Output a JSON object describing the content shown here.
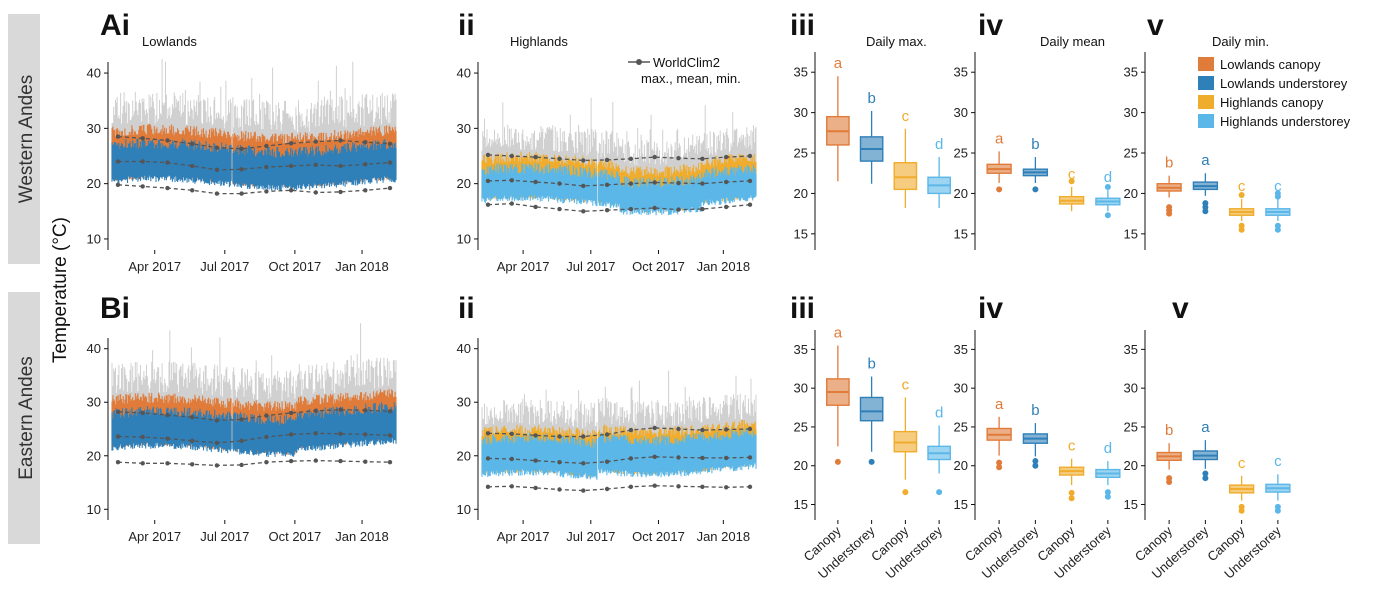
{
  "figure": {
    "y_axis_label": "Temperature (°C)",
    "rows": [
      {
        "label": "Western Andes",
        "panel_letters": [
          "Ai",
          "ii",
          "iii",
          "iv",
          "v"
        ]
      },
      {
        "label": "Eastern Andes",
        "panel_letters": [
          "Bi",
          "ii",
          "iii",
          "iv",
          "v"
        ]
      }
    ],
    "panel_titles": [
      "Lowlands",
      "Highlands",
      "Daily max.",
      "Daily mean",
      "Daily min."
    ],
    "worldclim_legend": {
      "line1": "WorldClim2",
      "line2": "max., mean, min."
    },
    "legend": [
      {
        "label": "Lowlands canopy",
        "color": "#e07b39"
      },
      {
        "label": "Lowlands understorey",
        "color": "#2f7fb8"
      },
      {
        "label": "Highlands canopy",
        "color": "#f0ac2c"
      },
      {
        "label": "Highlands understorey",
        "color": "#5bb7e8"
      }
    ],
    "box_categories": [
      "Canopy",
      "Understorey",
      "Canopy",
      "Understorey"
    ]
  },
  "colors": {
    "lowlands_canopy": "#e07b39",
    "lowlands_understorey": "#2f7fb8",
    "highlands_canopy": "#f0ac2c",
    "highlands_understorey": "#5bb7e8",
    "gray_series": "#d0d0d0",
    "worldclim": "#555555",
    "row_label_bg": "#d9d9d9"
  },
  "chart_data": [
    {
      "panel": "Ai",
      "type": "line",
      "title": "Lowlands",
      "ylim": [
        8,
        42
      ],
      "yticks": [
        10,
        20,
        30,
        40
      ],
      "xticks": [
        "Apr 2017",
        "Jul 2017",
        "Oct 2017",
        "Jan 2018"
      ],
      "series": [
        {
          "name": "canopy",
          "mean": 25,
          "low": 20,
          "high": 30
        },
        {
          "name": "understorey",
          "mean": 24,
          "low": 19.5,
          "high": 27.5
        }
      ],
      "worldclim": {
        "max": [
          28.5,
          28.2,
          27.8,
          27.2,
          26.5,
          26.3,
          26.8,
          27.3,
          27.6,
          27.8,
          27.5,
          27.2
        ],
        "mean": [
          24,
          24,
          23.8,
          23.2,
          22.5,
          22.6,
          23,
          23.2,
          23.4,
          23.2,
          23.5,
          23.8
        ],
        "min": [
          19.8,
          19.5,
          19.2,
          18.8,
          18.2,
          18.2,
          18.6,
          18.8,
          18.4,
          18.5,
          18.8,
          19.2
        ]
      }
    },
    {
      "panel": "Aii",
      "type": "line",
      "title": "Highlands",
      "ylim": [
        8,
        42
      ],
      "yticks": [
        10,
        20,
        30,
        40
      ],
      "xticks": [
        "Apr 2017",
        "Jul 2017",
        "Oct 2017",
        "Jan 2018"
      ],
      "series": [
        {
          "name": "canopy",
          "mean": 20.5,
          "low": 16.5,
          "high": 25
        },
        {
          "name": "understorey",
          "mean": 19.5,
          "low": 16,
          "high": 23
        }
      ],
      "worldclim": {
        "max": [
          25.2,
          25,
          24.8,
          24.5,
          24.2,
          24.3,
          24.5,
          24.8,
          24.6,
          24.5,
          24.8,
          25
        ],
        "mean": [
          20.5,
          20.6,
          20.3,
          20,
          19.6,
          19.8,
          20,
          20.2,
          20.1,
          20,
          20.3,
          20.5
        ],
        "min": [
          16.2,
          16.4,
          15.8,
          15.4,
          15,
          15.2,
          15.4,
          15.6,
          15.3,
          15.4,
          15.8,
          16.2
        ]
      }
    },
    {
      "panel": "Aiii",
      "type": "box",
      "title": "Daily max.",
      "ylim": [
        13,
        37.5
      ],
      "yticks": [
        15,
        20,
        25,
        30,
        35
      ],
      "boxes": [
        {
          "q1": 26,
          "median": 27.7,
          "q3": 29.5,
          "wlo": 21.5,
          "whi": 34.5,
          "letter": "a"
        },
        {
          "q1": 24,
          "median": 25.5,
          "q3": 27,
          "wlo": 21.2,
          "whi": 30.2,
          "letter": "b"
        },
        {
          "q1": 20.5,
          "median": 22,
          "q3": 23.8,
          "wlo": 18.2,
          "whi": 28,
          "letter": "c"
        },
        {
          "q1": 20,
          "median": 21,
          "q3": 22,
          "wlo": 18.2,
          "whi": 24.5,
          "letter": "d"
        }
      ]
    },
    {
      "panel": "Aiv",
      "type": "box",
      "title": "Daily mean",
      "ylim": [
        13,
        37.5
      ],
      "yticks": [
        15,
        20,
        25,
        30,
        35
      ],
      "boxes": [
        {
          "q1": 22.5,
          "median": 23,
          "q3": 23.6,
          "wlo": 21.3,
          "whi": 25.2,
          "letter": "a",
          "outliers": [
            20.5
          ]
        },
        {
          "q1": 22.2,
          "median": 22.6,
          "q3": 23,
          "wlo": 21.3,
          "whi": 24.5,
          "letter": "b",
          "outliers": [
            20.5
          ]
        },
        {
          "q1": 18.7,
          "median": 19.1,
          "q3": 19.6,
          "wlo": 17.8,
          "whi": 20.8,
          "letter": "c",
          "outliers": [
            21.5
          ]
        },
        {
          "q1": 18.6,
          "median": 19,
          "q3": 19.4,
          "wlo": 17.8,
          "whi": 20.4,
          "letter": "d",
          "outliers": [
            17.3,
            20.8
          ]
        }
      ]
    },
    {
      "panel": "Av",
      "type": "box",
      "title": "Daily min.",
      "ylim": [
        13,
        37.5
      ],
      "yticks": [
        15,
        20,
        25,
        30,
        35
      ],
      "boxes": [
        {
          "q1": 20.3,
          "median": 20.7,
          "q3": 21.2,
          "wlo": 19.5,
          "whi": 22.2,
          "letter": "b",
          "outliers": [
            17.5,
            17.9,
            18.3
          ]
        },
        {
          "q1": 20.5,
          "median": 20.9,
          "q3": 21.4,
          "wlo": 19.7,
          "whi": 22.5,
          "letter": "a",
          "outliers": [
            17.8,
            18.3,
            18.8
          ]
        },
        {
          "q1": 17.3,
          "median": 17.7,
          "q3": 18.1,
          "wlo": 16.6,
          "whi": 19.3,
          "letter": "c",
          "outliers": [
            15.5,
            16,
            19.8
          ]
        },
        {
          "q1": 17.3,
          "median": 17.7,
          "q3": 18.1,
          "wlo": 16.6,
          "whi": 19.3,
          "letter": "c",
          "outliers": [
            15.5,
            16,
            19.6,
            20
          ]
        }
      ]
    },
    {
      "panel": "Bi",
      "type": "line",
      "title": "",
      "ylim": [
        8,
        42
      ],
      "yticks": [
        10,
        20,
        30,
        40
      ],
      "xticks": [
        "Apr 2017",
        "Jul 2017",
        "Oct 2017",
        "Jan 2018"
      ],
      "series": [
        {
          "name": "canopy",
          "mean": 26,
          "low": 21,
          "high": 31
        },
        {
          "name": "understorey",
          "mean": 25,
          "low": 20.5,
          "high": 28.5
        }
      ],
      "worldclim": {
        "max": [
          28.2,
          28,
          27.6,
          27.2,
          26.6,
          26.8,
          27.5,
          28,
          28.4,
          28.6,
          28.5,
          28.3
        ],
        "mean": [
          23.6,
          23.5,
          23.2,
          22.8,
          22.4,
          22.8,
          23.5,
          24,
          24.2,
          24.1,
          24,
          23.8
        ],
        "min": [
          18.8,
          18.6,
          18.6,
          18.4,
          18.2,
          18.3,
          18.8,
          19,
          19.1,
          19,
          18.9,
          18.8
        ]
      }
    },
    {
      "panel": "Bii",
      "type": "line",
      "title": "",
      "ylim": [
        8,
        42
      ],
      "yticks": [
        10,
        20,
        30,
        40
      ],
      "xticks": [
        "Apr 2017",
        "Jul 2017",
        "Oct 2017",
        "Jan 2018"
      ],
      "series": [
        {
          "name": "canopy",
          "mean": 20.5,
          "low": 16,
          "high": 25
        },
        {
          "name": "understorey",
          "mean": 19.5,
          "low": 15.5,
          "high": 23.5
        }
      ],
      "worldclim": {
        "max": [
          24.2,
          24.1,
          23.8,
          23.6,
          23.6,
          24,
          24.8,
          25.2,
          25,
          24.8,
          24.9,
          25
        ],
        "mean": [
          19.5,
          19.4,
          19.1,
          18.8,
          18.6,
          18.9,
          19.5,
          19.8,
          19.7,
          19.6,
          19.6,
          19.7
        ],
        "min": [
          14.2,
          14.3,
          14,
          13.7,
          13.5,
          13.8,
          14.2,
          14.4,
          14.3,
          14.2,
          14.1,
          14.2
        ]
      }
    },
    {
      "panel": "Biii",
      "type": "box",
      "title": "",
      "ylim": [
        13,
        37.5
      ],
      "yticks": [
        15,
        20,
        25,
        30,
        35
      ],
      "boxes": [
        {
          "q1": 27.8,
          "median": 29.5,
          "q3": 31.2,
          "wlo": 22.5,
          "whi": 35.5,
          "letter": "a",
          "outliers": [
            20.5
          ]
        },
        {
          "q1": 25.8,
          "median": 27,
          "q3": 28.8,
          "wlo": 21.8,
          "whi": 31.5,
          "letter": "b",
          "outliers": [
            20.5
          ]
        },
        {
          "q1": 21.8,
          "median": 23,
          "q3": 24.4,
          "wlo": 18.2,
          "whi": 28.8,
          "letter": "c",
          "outliers": [
            16.6
          ]
        },
        {
          "q1": 20.8,
          "median": 21.6,
          "q3": 22.5,
          "wlo": 19,
          "whi": 25.2,
          "letter": "d",
          "outliers": [
            16.6
          ]
        }
      ]
    },
    {
      "panel": "Biv",
      "type": "box",
      "title": "",
      "ylim": [
        13,
        37.5
      ],
      "yticks": [
        15,
        20,
        25,
        30,
        35
      ],
      "boxes": [
        {
          "q1": 23.3,
          "median": 24,
          "q3": 24.8,
          "wlo": 21.3,
          "whi": 26.3,
          "letter": "a",
          "outliers": [
            19.8,
            20.4
          ]
        },
        {
          "q1": 22.9,
          "median": 23.5,
          "q3": 24.1,
          "wlo": 21.2,
          "whi": 25.5,
          "letter": "b",
          "outliers": [
            20,
            20.6
          ]
        },
        {
          "q1": 18.8,
          "median": 19.3,
          "q3": 19.8,
          "wlo": 17.5,
          "whi": 20.9,
          "letter": "c",
          "outliers": [
            15.8,
            16.5
          ]
        },
        {
          "q1": 18.5,
          "median": 19,
          "q3": 19.5,
          "wlo": 17.5,
          "whi": 20.6,
          "letter": "d",
          "outliers": [
            16,
            16.6
          ]
        }
      ]
    },
    {
      "panel": "Bv",
      "type": "box",
      "title": "",
      "ylim": [
        13,
        37.5
      ],
      "yticks": [
        15,
        20,
        25,
        30,
        35
      ],
      "boxes": [
        {
          "q1": 20.7,
          "median": 21.2,
          "q3": 21.7,
          "wlo": 19.5,
          "whi": 22.9,
          "letter": "b",
          "outliers": [
            17.9,
            18.4
          ]
        },
        {
          "q1": 20.8,
          "median": 21.3,
          "q3": 21.9,
          "wlo": 19.6,
          "whi": 23.3,
          "letter": "a",
          "outliers": [
            18.4,
            19
          ]
        },
        {
          "q1": 16.5,
          "median": 17,
          "q3": 17.5,
          "wlo": 15.5,
          "whi": 18.7,
          "letter": "c",
          "outliers": [
            14.2,
            14.7
          ]
        },
        {
          "q1": 16.6,
          "median": 17.1,
          "q3": 17.6,
          "wlo": 15.5,
          "whi": 18.9,
          "letter": "c",
          "outliers": [
            14.2,
            14.7
          ]
        }
      ]
    }
  ]
}
